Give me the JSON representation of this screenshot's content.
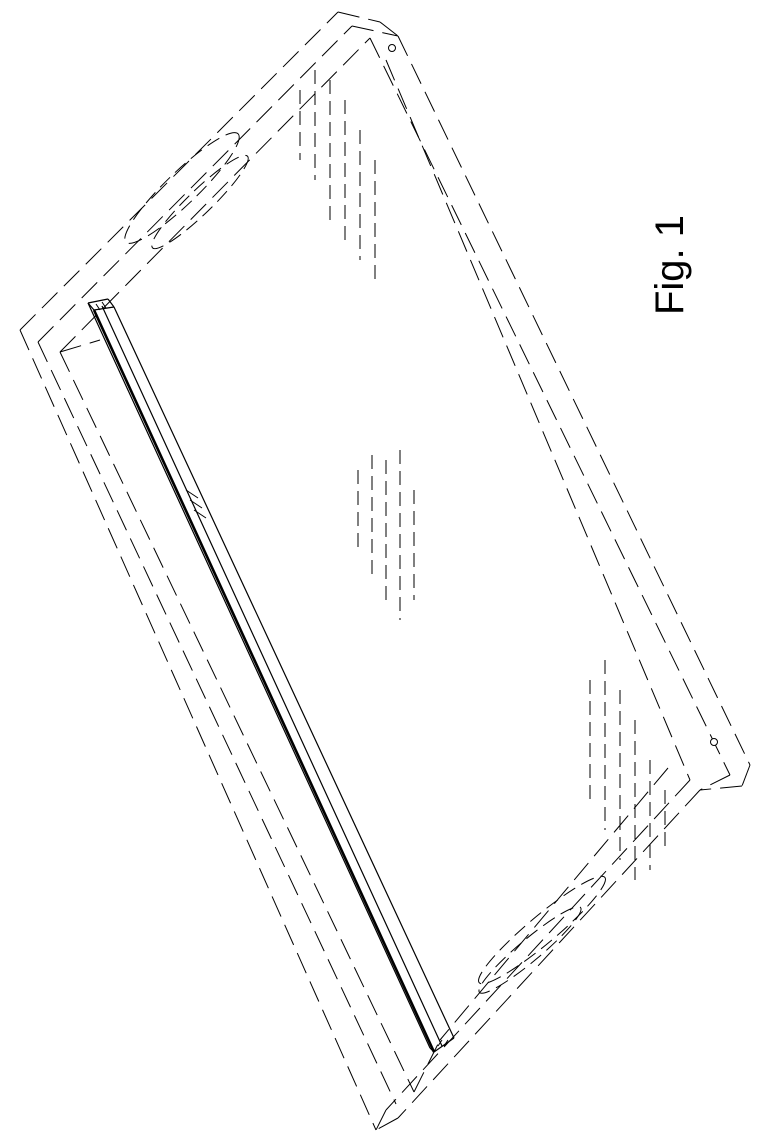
{
  "figure": {
    "label": "Fig. 1"
  },
  "colors": {
    "background": "#ffffff",
    "line": "#000000"
  }
}
